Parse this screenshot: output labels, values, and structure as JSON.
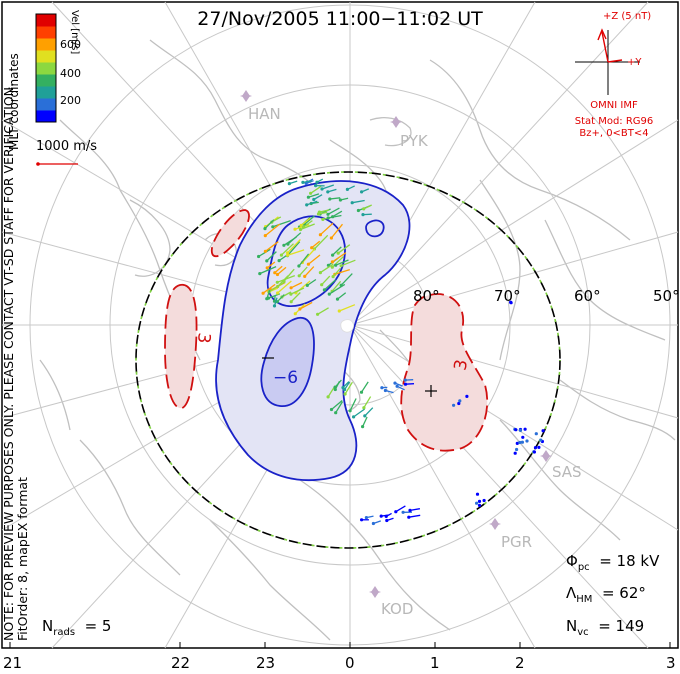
{
  "title": "27/Nov/2005 11:00−11:02 UT",
  "side_text": {
    "coords": "MLT coordinates",
    "note": "NOTE: FOR PREVIEW PURPOSES ONLY. PLEASE CONTACT VT-SD STAFF FOR VERIFICATION.",
    "fit_order": "FitOrder: 8, mapEX format"
  },
  "colorbar": {
    "label": "Vel [m/s]",
    "ticks": [
      "600",
      "400",
      "200"
    ],
    "colors": [
      "#0000ff",
      "#2a6fd8",
      "#20a098",
      "#34b060",
      "#8cd840",
      "#e0e020",
      "#ffa000",
      "#ff4000",
      "#e00000"
    ]
  },
  "vector_scale_label": "1000 m/s",
  "imf": {
    "z_label": "+Z (5 nT)",
    "y_label": "+Y",
    "source": "OMNI IMF",
    "model_line1": "Stat Mod: RG96",
    "model_line2": "Bz+, 0<BT<4"
  },
  "stations": [
    "HAN",
    "PYK",
    "SAS",
    "PGR",
    "KOD"
  ],
  "latitude_labels": [
    "80°",
    "70°",
    "60°",
    "50°"
  ],
  "mlt_labels": [
    "21",
    "22",
    "23",
    "0",
    "1",
    "2",
    "3"
  ],
  "stats": {
    "phi_pc_label": "Φ",
    "phi_pc_sub": "pc",
    "phi_pc_value": "= 18 kV",
    "lambda_label": "Λ",
    "lambda_sub": "HM",
    "lambda_value": "= 62°",
    "nvc_label": "N",
    "nvc_sub": "vc",
    "nvc_value": "= 149",
    "nrads_label": "N",
    "nrads_sub": "rads",
    "nrads_value": "= 5"
  },
  "contours": {
    "negative_cell": {
      "labels": [
        "−6"
      ],
      "extremum": "−"
    },
    "positive_cell": {
      "labels": [
        "3",
        "3"
      ],
      "extremum": "+"
    }
  },
  "colors": {
    "negative": "#1a22c8",
    "positive": "#d01010",
    "grid": "#c8c8c8",
    "land": "#c0c0c0"
  }
}
